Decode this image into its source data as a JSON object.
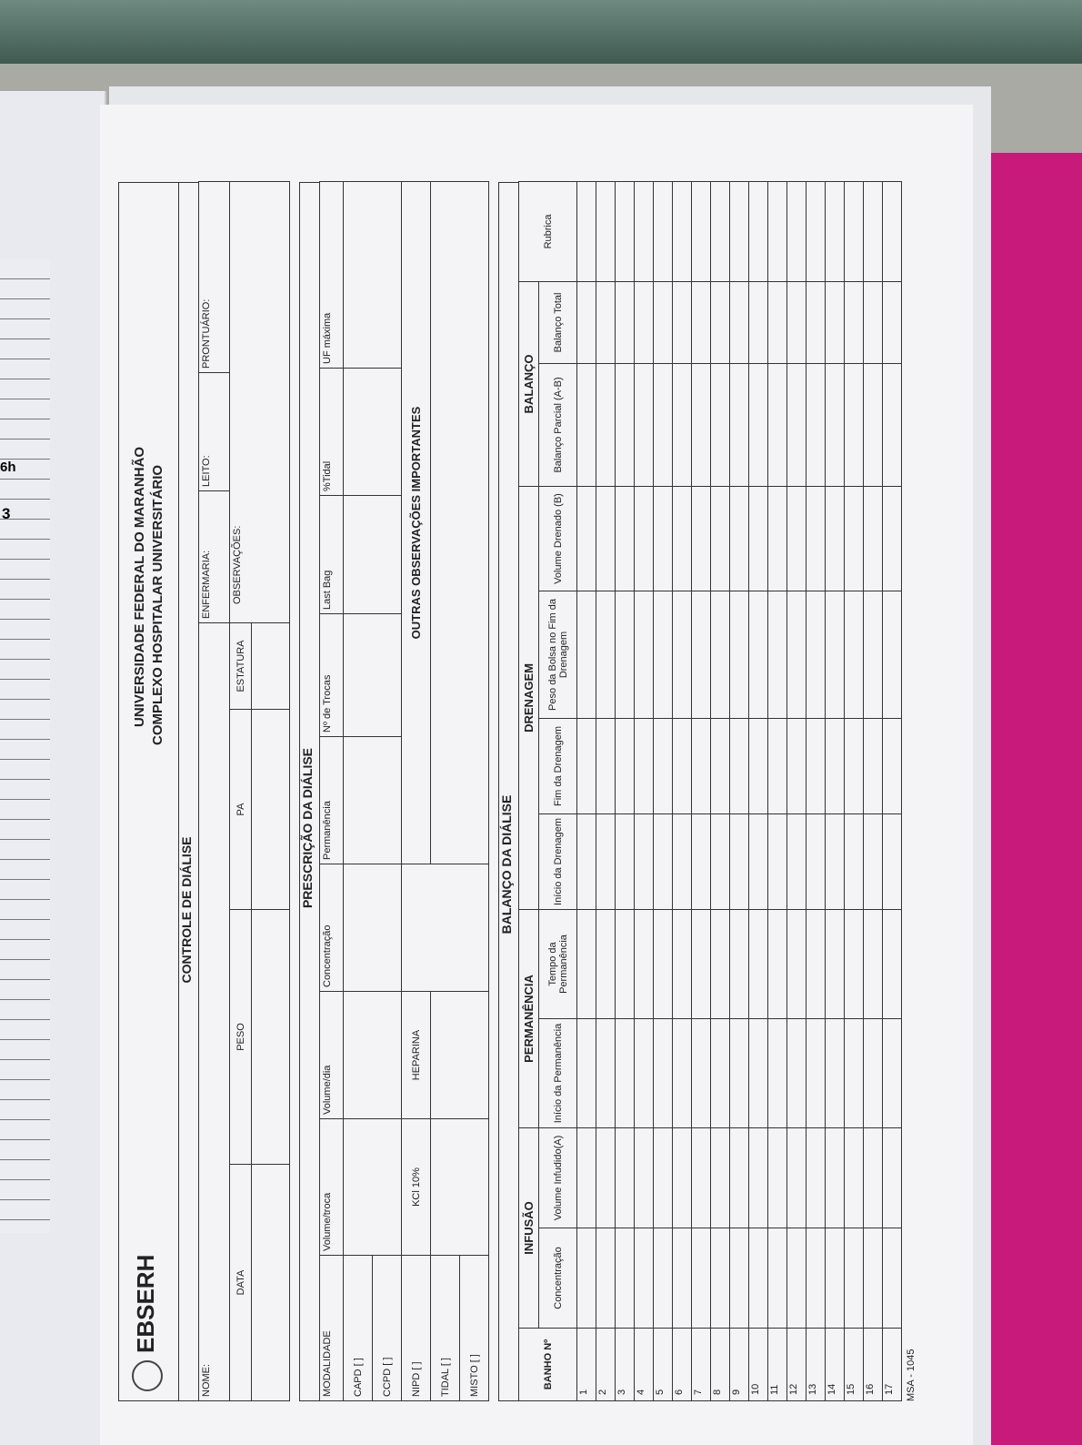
{
  "left_page": {
    "texts": [
      "6h",
      "3"
    ]
  },
  "header": {
    "logo": "EBSERH",
    "university": "UNIVERSIDADE FEDERAL DO MARANHÃO",
    "hospital": "COMPLEXO HOSPITALAR UNIVERSITÁRIO",
    "title": "CONTROLE DE DIÁLISE"
  },
  "patient": {
    "nome": "NOME:",
    "enfermaria": "ENFERMARIA:",
    "leito": "LEITO:",
    "prontuario": "PRONTUÁRIO:",
    "data": "DATA",
    "peso": "PESO",
    "pa": "PA",
    "estatura": "ESTATURA",
    "observacoes": "OBSERVAÇÕES:"
  },
  "prescription": {
    "title": "PRESCRIÇÃO DA DIÁLISE",
    "headers": [
      "MODALIDADE",
      "Volume/troca",
      "Volume/dia",
      "Concentração",
      "Permanência",
      "Nº de Trocas",
      "Last Bag",
      "%Tidal",
      "UF máxima"
    ],
    "modalities": [
      "CAPD [ ]",
      "CCPD [ ]",
      "NIPD [ ]",
      "TIDAL [ ]",
      "MISTO [ ]"
    ],
    "kcl": "KCl 10%",
    "heparina": "HEPARINA",
    "outras": "OUTRAS OBSERVAÇÕES IMPORTANTES"
  },
  "balance": {
    "title": "BALANÇO DA DIÁLISE",
    "groups": [
      "INFUSÃO",
      "PERMANÊNCIA",
      "DRENAGEM",
      "BALANÇO"
    ],
    "columns": [
      "BANHO Nº",
      "Concentração",
      "Volume Infudido(A)",
      "Início da Permanência",
      "Tempo da Permanência",
      "Início da Drenagem",
      "Fim da Drenagem",
      "Peso da Bolsa no Fim da Drenagem",
      "Volume Drenado (B)",
      "Balanço Parcial (A-B)",
      "Balanço Total",
      "Rubrica"
    ],
    "rows": [
      1,
      2,
      3,
      4,
      5,
      6,
      7,
      8,
      9,
      10,
      11,
      12,
      13,
      14,
      15,
      16,
      17
    ]
  },
  "footer": "MSA - 1045"
}
